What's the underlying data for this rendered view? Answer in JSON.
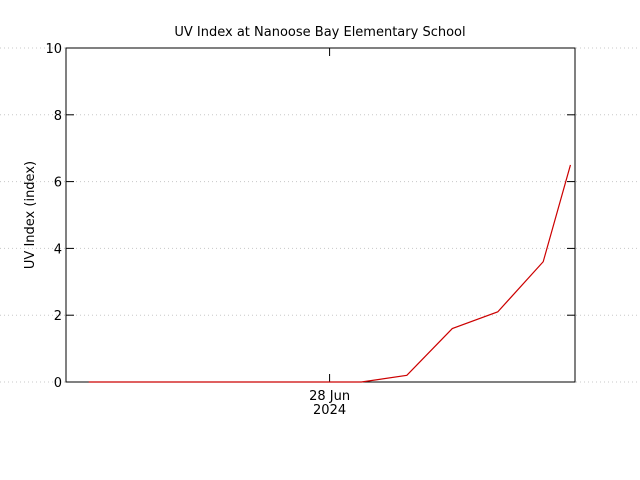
{
  "chart_data": {
    "type": "line",
    "title": "UV Index at Nanoose Bay Elementary School",
    "y_label": "UV Index (index)",
    "x": [
      0.5,
      1.5,
      2.5,
      3.5,
      4.5,
      5.5,
      6.5,
      7.5,
      8.5,
      9.5,
      10.5,
      11.1
    ],
    "series": [
      {
        "color": "#cc0000",
        "values": [
          0,
          0,
          0,
          0,
          0,
          0,
          0,
          0.2,
          1.6,
          2.1,
          3.6,
          6.5
        ]
      }
    ],
    "xlim": [
      0,
      11.2
    ],
    "xticks": [
      {
        "value": 5.8,
        "label": "28 Jun\n2024"
      }
    ],
    "ylim": [
      0,
      10
    ],
    "yticks": [
      0,
      2,
      4,
      6,
      8,
      10
    ],
    "grid": true
  }
}
